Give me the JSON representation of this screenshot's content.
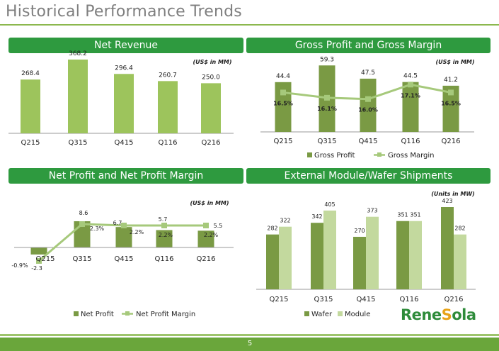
{
  "page": {
    "title": "Historical Performance Trends",
    "page_number": "5",
    "logo_text": "ReneSola",
    "colors": {
      "header_bg": "#2e9a3f",
      "bar_light": "#9dc45c",
      "bar_dark": "#7a9a44",
      "bar_pale": "#c3d99e",
      "line": "#a6c97b",
      "title": "#7f7f7f"
    }
  },
  "chart_data": [
    {
      "id": "net-revenue",
      "header": "Net Revenue",
      "type": "bar",
      "unit_note": "(US$ in MM)",
      "categories": [
        "Q215",
        "Q315",
        "Q415",
        "Q116",
        "Q216"
      ],
      "values": [
        268.4,
        368.2,
        296.4,
        260.7,
        250.0
      ],
      "value_labels": [
        "268.4",
        "368.2",
        "296.4",
        "260.7",
        "250.0"
      ],
      "ylim": [
        0,
        400
      ]
    },
    {
      "id": "gross-profit",
      "header": "Gross  Profit and Gross Margin",
      "type": "bar+line",
      "unit_note": "(US$ in MM)",
      "categories": [
        "Q215",
        "Q315",
        "Q415",
        "Q116",
        "Q216"
      ],
      "series": [
        {
          "name": "Gross Profit",
          "values": [
            44.4,
            59.3,
            47.5,
            44.5,
            41.2
          ],
          "labels": [
            "44.4",
            "59.3",
            "47.5",
            "44.5",
            "41.2"
          ],
          "kind": "bar"
        },
        {
          "name": "Gross Margin",
          "values": [
            16.5,
            16.1,
            16.0,
            17.1,
            16.5
          ],
          "labels": [
            "16.5%",
            "16.1%",
            "16.0%",
            "17.1%",
            "16.5%"
          ],
          "kind": "line"
        }
      ],
      "ylim": [
        0,
        62
      ],
      "y2lim": [
        14.8,
        17.6
      ],
      "legend": "bottom"
    },
    {
      "id": "net-profit",
      "header": "Net Profit and Net Profit Margin",
      "type": "bar+line",
      "unit_note": "(US$ in MM)",
      "categories": [
        "Q215",
        "Q315",
        "Q415",
        "Q116",
        "Q216"
      ],
      "series": [
        {
          "name": "Net Profit",
          "values": [
            -2.3,
            8.6,
            6.7,
            5.7,
            5.5
          ],
          "labels": [
            "-2.3",
            "8.6",
            "6.7",
            "5.7",
            "5.5"
          ],
          "kind": "bar"
        },
        {
          "name": "Net Profit Margin",
          "values": [
            -0.9,
            2.3,
            2.2,
            2.2,
            2.2
          ],
          "labels": [
            "-0.9%",
            "2.3%",
            "2.2%",
            "2.2%",
            "2.2%"
          ],
          "kind": "line"
        }
      ],
      "ylim": [
        -4,
        11
      ],
      "legend": "bottom"
    },
    {
      "id": "shipments",
      "header": "External Module/Wafer Shipments",
      "type": "bar",
      "unit_note": "(Units in MW)",
      "categories": [
        "Q215",
        "Q315",
        "Q415",
        "Q116",
        "Q216"
      ],
      "series": [
        {
          "name": "Wafer",
          "values": [
            282,
            342,
            270,
            351,
            423
          ]
        },
        {
          "name": "Module",
          "values": [
            322,
            405,
            373,
            351,
            282
          ]
        }
      ],
      "ylim": [
        0,
        450
      ],
      "legend": "bottom"
    }
  ]
}
